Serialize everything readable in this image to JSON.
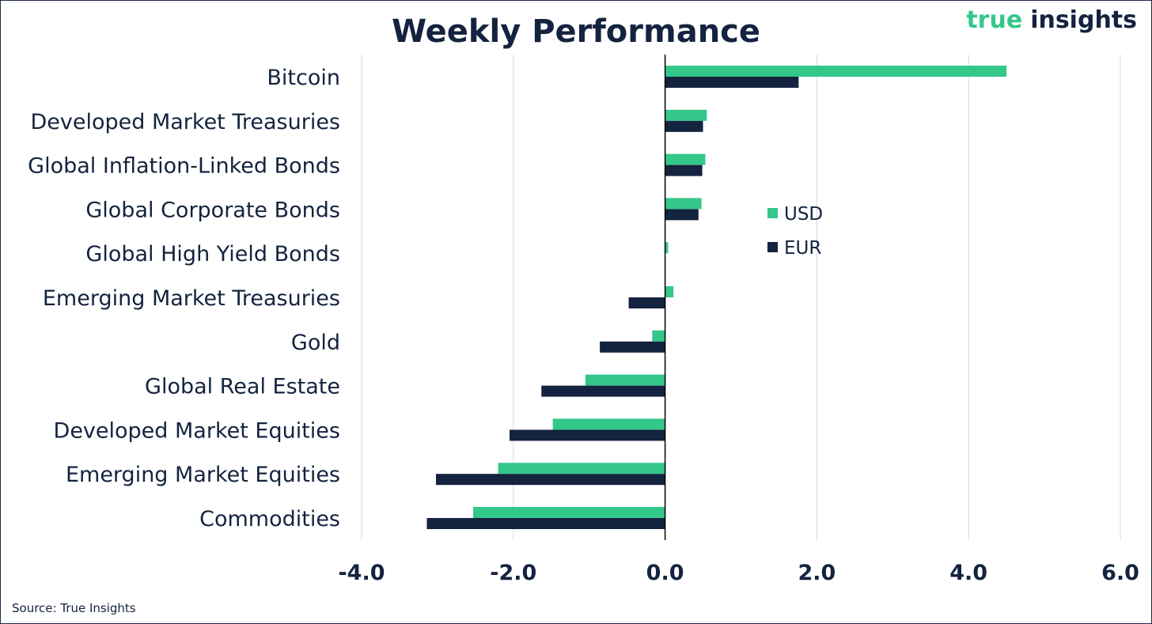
{
  "brand": {
    "part1": "true",
    "part2": "insights"
  },
  "source": "Source: True Insights",
  "colors": {
    "usd": "#34c78a",
    "eur": "#14233f",
    "text": "#14233f",
    "grid": "#d9d9d9"
  },
  "chart_data": {
    "type": "bar",
    "orientation": "horizontal",
    "title": "Weekly Performance",
    "xlabel": "",
    "ylabel": "",
    "categories": [
      "Bitcoin",
      "Developed Market Treasuries",
      "Global Inflation-Linked Bonds",
      "Global Corporate Bonds",
      "Global High Yield Bonds",
      "Emerging Market Treasuries",
      "Gold",
      "Global Real Estate",
      "Developed Market Equities",
      "Emerging Market Equities",
      "Commodities"
    ],
    "series": [
      {
        "name": "USD",
        "color": "#34c78a",
        "values": [
          4.5,
          0.55,
          0.53,
          0.48,
          0.04,
          0.11,
          -0.17,
          -1.05,
          -1.48,
          -2.2,
          -2.53
        ]
      },
      {
        "name": "EUR",
        "color": "#14233f",
        "values": [
          1.76,
          0.5,
          0.49,
          0.44,
          0.0,
          -0.48,
          -0.86,
          -1.63,
          -2.05,
          -3.02,
          -3.14
        ]
      }
    ],
    "xlim": [
      -4.0,
      6.0
    ],
    "xticks": [
      "-4.0",
      "-2.0",
      "0.0",
      "2.0",
      "4.0",
      "6.0"
    ],
    "grid": true,
    "legend": {
      "position": "center-right",
      "entries": [
        "USD",
        "EUR"
      ]
    }
  }
}
